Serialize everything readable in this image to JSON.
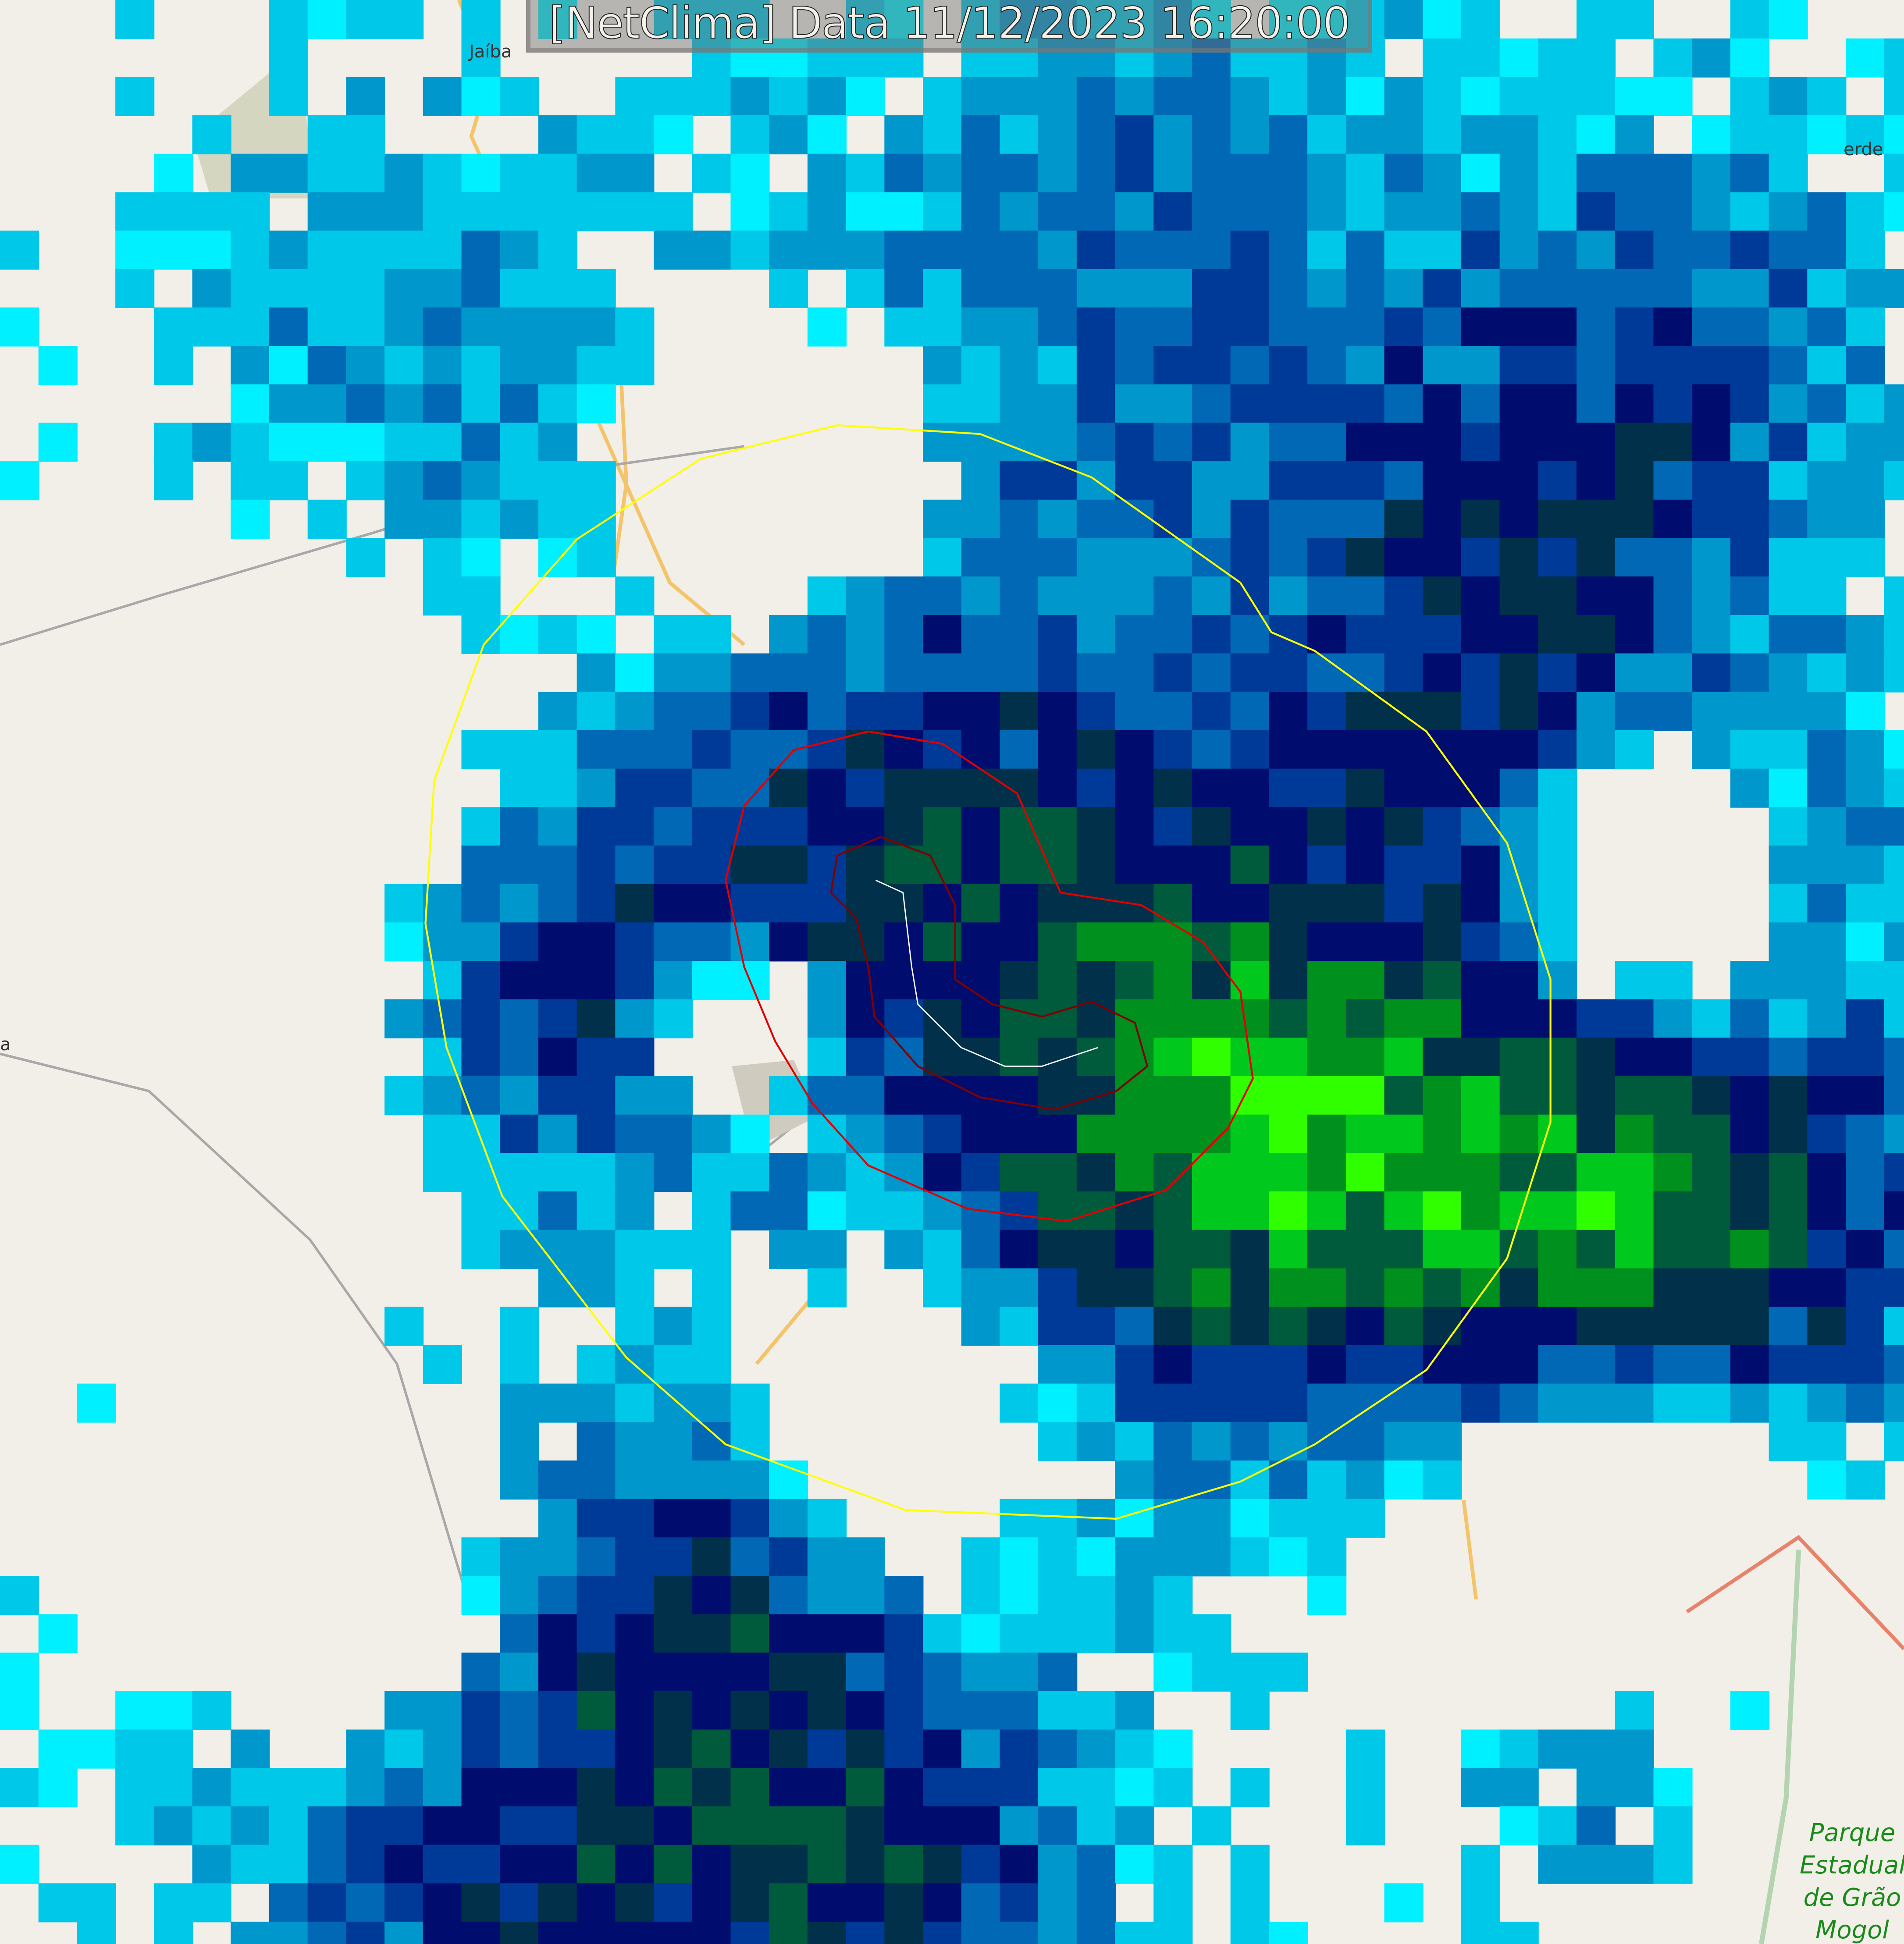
{
  "title": "[NetClima] Data 11/12/2023 16:20:00",
  "places": {
    "jaiba": "Jaíba",
    "verde": "erde",
    "west": "a",
    "park": [
      "Parque",
      "Estadual",
      "de Grão",
      "Mogol"
    ]
  },
  "radar_palette": [
    "#ffffff",
    "#00f0ff",
    "#00c8e8",
    "#0098cc",
    "#0068b4",
    "#003a98",
    "#000c6e",
    "#00304a",
    "#005a3c",
    "#00901e",
    "#00c81c",
    "#30ff00"
  ],
  "ring_colors": {
    "outer": "#ffff00",
    "middle": "#e00000",
    "inner": "#800000",
    "track": "#ffffff"
  }
}
